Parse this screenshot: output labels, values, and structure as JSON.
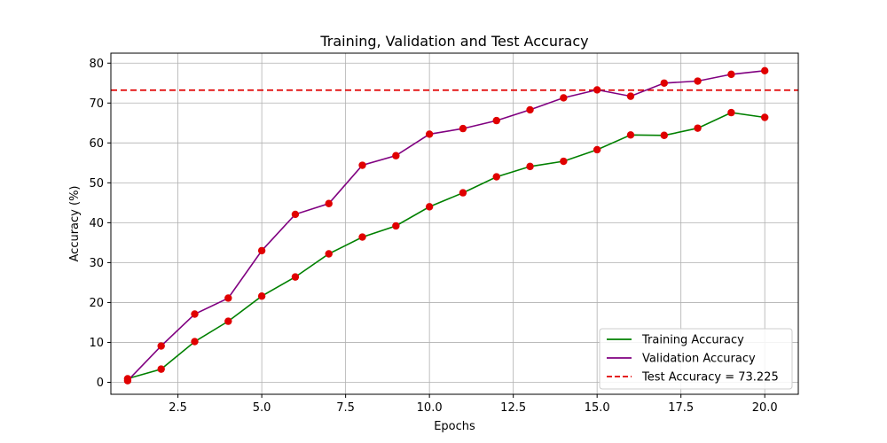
{
  "chart_data": {
    "type": "line",
    "title": "Training, Validation and Test Accuracy",
    "xlabel": "Epochs",
    "ylabel": "Accuracy (%)",
    "xlim": [
      0.5,
      21.0
    ],
    "ylim": [
      -3.0,
      82.5
    ],
    "xticks": [
      "2.5",
      "5.0",
      "7.5",
      "10.0",
      "12.5",
      "15.0",
      "17.5",
      "20.0"
    ],
    "xtick_values": [
      2.5,
      5.0,
      7.5,
      10.0,
      12.5,
      15.0,
      17.5,
      20.0
    ],
    "yticks": [
      "0",
      "10",
      "20",
      "30",
      "40",
      "50",
      "60",
      "70",
      "80"
    ],
    "ytick_values": [
      0,
      10,
      20,
      30,
      40,
      50,
      60,
      70,
      80
    ],
    "grid": true,
    "legend_position": "bottom-right",
    "x": [
      1,
      2,
      3,
      4,
      5,
      6,
      7,
      8,
      9,
      10,
      11,
      12,
      13,
      14,
      15,
      16,
      17,
      18,
      19,
      20
    ],
    "series": [
      {
        "name": "Training Accuracy",
        "color": "#008000",
        "values": [
          0.9,
          3.3,
          10.2,
          15.3,
          21.6,
          26.4,
          32.2,
          36.4,
          39.2,
          44.0,
          47.5,
          51.5,
          54.1,
          55.4,
          58.3,
          62.0,
          61.9,
          63.7,
          67.6,
          66.4
        ]
      },
      {
        "name": "Validation Accuracy",
        "color": "#800080",
        "values": [
          0.4,
          9.1,
          17.1,
          21.1,
          33.0,
          42.1,
          44.8,
          54.4,
          56.8,
          62.2,
          63.6,
          65.6,
          68.3,
          71.3,
          73.3,
          71.7,
          75.0,
          75.5,
          77.2,
          78.1
        ]
      }
    ],
    "marker_color": "#e00000",
    "reference_line": {
      "name": "Test Accuracy = 73.225",
      "value": 73.225,
      "color": "#e00000",
      "style": "dashed"
    }
  }
}
